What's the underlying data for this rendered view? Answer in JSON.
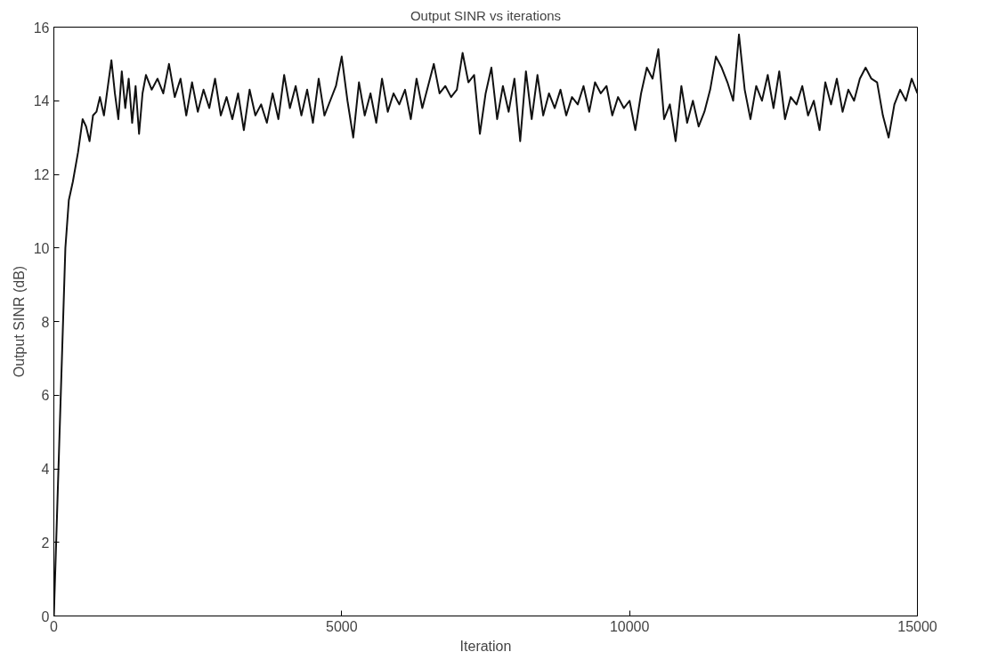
{
  "chart_data": {
    "type": "line",
    "title": "Output SINR vs iterations",
    "xlabel": "Iteration",
    "ylabel": "Output SINR (dB)",
    "xlim": [
      0,
      15000
    ],
    "ylim": [
      0,
      16
    ],
    "xticks": [
      0,
      5000,
      10000,
      15000
    ],
    "yticks": [
      0,
      2,
      4,
      6,
      8,
      10,
      12,
      14,
      16
    ],
    "grid": false,
    "marker": "none",
    "line_style": "solid",
    "series": [
      {
        "color": "#111111",
        "x": [
          0,
          60,
          120,
          200,
          260,
          330,
          420,
          500,
          560,
          620,
          680,
          740,
          800,
          870,
          930,
          1000,
          1060,
          1120,
          1180,
          1240,
          1300,
          1360,
          1420,
          1480,
          1540,
          1600,
          1700,
          1800,
          1900,
          2000,
          2100,
          2200,
          2300,
          2400,
          2500,
          2600,
          2700,
          2800,
          2900,
          3000,
          3100,
          3200,
          3300,
          3400,
          3500,
          3600,
          3700,
          3800,
          3900,
          4000,
          4100,
          4200,
          4300,
          4400,
          4500,
          4600,
          4700,
          4800,
          4900,
          5000,
          5100,
          5200,
          5300,
          5400,
          5500,
          5600,
          5700,
          5800,
          5900,
          6000,
          6100,
          6200,
          6300,
          6400,
          6500,
          6600,
          6700,
          6800,
          6900,
          7000,
          7100,
          7200,
          7300,
          7400,
          7500,
          7600,
          7700,
          7800,
          7900,
          8000,
          8100,
          8200,
          8300,
          8400,
          8500,
          8600,
          8700,
          8800,
          8900,
          9000,
          9100,
          9200,
          9300,
          9400,
          9500,
          9600,
          9700,
          9800,
          9900,
          10000,
          10100,
          10200,
          10300,
          10400,
          10500,
          10600,
          10700,
          10800,
          10900,
          11000,
          11100,
          11200,
          11300,
          11400,
          11500,
          11600,
          11700,
          11800,
          11900,
          12000,
          12100,
          12200,
          12300,
          12400,
          12500,
          12600,
          12700,
          12800,
          12900,
          13000,
          13100,
          13200,
          13300,
          13400,
          13500,
          13600,
          13700,
          13800,
          13900,
          14000,
          14100,
          14200,
          14300,
          14400,
          14500,
          14600,
          14700,
          14800,
          14900,
          15000
        ],
        "values": [
          0,
          3,
          6,
          10,
          11.3,
          11.8,
          12.6,
          13.5,
          13.3,
          12.9,
          13.6,
          13.7,
          14.1,
          13.6,
          14.3,
          15.1,
          14.2,
          13.5,
          14.8,
          13.8,
          14.6,
          13.4,
          14.4,
          13.1,
          14.2,
          14.7,
          14.3,
          14.6,
          14.2,
          15.0,
          14.1,
          14.6,
          13.6,
          14.5,
          13.7,
          14.3,
          13.8,
          14.6,
          13.6,
          14.1,
          13.5,
          14.2,
          13.2,
          14.3,
          13.6,
          13.9,
          13.4,
          14.2,
          13.5,
          14.7,
          13.8,
          14.4,
          13.6,
          14.3,
          13.4,
          14.6,
          13.6,
          14.0,
          14.4,
          15.2,
          14.0,
          13.0,
          14.5,
          13.6,
          14.2,
          13.4,
          14.6,
          13.7,
          14.2,
          13.9,
          14.3,
          13.5,
          14.6,
          13.8,
          14.4,
          15.0,
          14.2,
          14.4,
          14.1,
          14.3,
          15.3,
          14.5,
          14.7,
          13.1,
          14.2,
          14.9,
          13.5,
          14.4,
          13.7,
          14.6,
          12.9,
          14.8,
          13.5,
          14.7,
          13.6,
          14.2,
          13.8,
          14.3,
          13.6,
          14.1,
          13.9,
          14.4,
          13.7,
          14.5,
          14.2,
          14.4,
          13.6,
          14.1,
          13.8,
          14.0,
          13.2,
          14.2,
          14.9,
          14.6,
          15.4,
          13.5,
          13.9,
          12.9,
          14.4,
          13.4,
          14.0,
          13.3,
          13.7,
          14.3,
          15.2,
          14.9,
          14.5,
          14.0,
          15.8,
          14.3,
          13.5,
          14.4,
          14.0,
          14.7,
          13.8,
          14.8,
          13.5,
          14.1,
          13.9,
          14.4,
          13.6,
          14.0,
          13.2,
          14.5,
          13.9,
          14.6,
          13.7,
          14.3,
          14.0,
          14.6,
          14.9,
          14.6,
          14.5,
          13.6,
          13.0,
          13.9,
          14.3,
          14.0,
          14.6,
          14.2
        ]
      }
    ]
  }
}
